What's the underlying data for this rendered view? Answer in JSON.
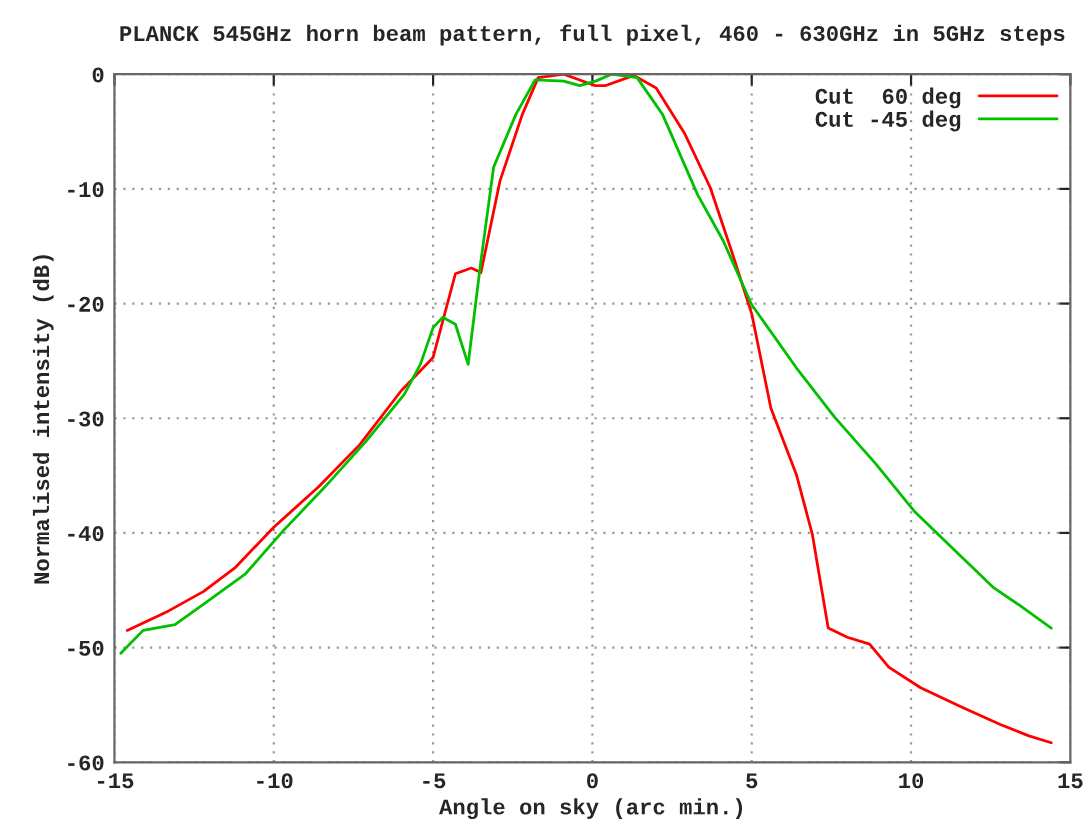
{
  "chart_data": {
    "type": "line",
    "title": "PLANCK 545GHz horn beam pattern, full pixel, 460 - 630GHz in 5GHz steps",
    "xlabel": "Angle on sky (arc min.)",
    "ylabel": "Normalised intensity (dB)",
    "xlim": [
      -15,
      15
    ],
    "ylim": [
      -60,
      0
    ],
    "xticks": [
      -15,
      -10,
      -5,
      0,
      5,
      10,
      15
    ],
    "yticks": [
      -60,
      -50,
      -40,
      -30,
      -20,
      -10,
      0
    ],
    "grid": true,
    "legend": "top right",
    "line_style": "solid",
    "marker": "none",
    "series": [
      {
        "name": "Cut  60 deg",
        "color": "#ff0000",
        "x": [
          -14.6,
          -13.3,
          -12.2,
          -11.2,
          -10,
          -8.6,
          -7.3,
          -6.0,
          -5.0,
          -4.3,
          -3.8,
          -3.5,
          -2.9,
          -2.2,
          -1.7,
          -0.9,
          0.1,
          0.4,
          1.3,
          2.0,
          2.9,
          3.7,
          4.4,
          5.0,
          5.6,
          6.4,
          6.9,
          7.4,
          8.0,
          8.7,
          9.3,
          10.3,
          11.6,
          12.8,
          13.7,
          14.4
        ],
        "values": [
          -48.5,
          -46.8,
          -45.1,
          -43.0,
          -39.5,
          -36.0,
          -32.3,
          -27.6,
          -24.7,
          -17.4,
          -16.9,
          -17.3,
          -9.3,
          -3.5,
          -0.3,
          0,
          -1.0,
          -1.0,
          -0.1,
          -1.2,
          -5.2,
          -9.9,
          -15.7,
          -20.9,
          -29.1,
          -34.9,
          -40.1,
          -48.3,
          -49.1,
          -49.7,
          -51.7,
          -53.5,
          -55.2,
          -56.7,
          -57.7,
          -58.3
        ]
      },
      {
        "name": "Cut -45 deg",
        "color": "#00c000",
        "x": [
          -14.8,
          -14.1,
          -13.1,
          -12.2,
          -10.9,
          -9.7,
          -8.4,
          -7.1,
          -5.9,
          -5.4,
          -5.0,
          -4.7,
          -4.3,
          -3.9,
          -3.5,
          -3.1,
          -2.4,
          -1.8,
          -0.9,
          -0.4,
          0.1,
          0.6,
          1.4,
          2.2,
          3.3,
          4.1,
          5.0,
          6.4,
          7.6,
          8.9,
          10.1,
          11.4,
          12.6,
          13.4,
          14.4
        ],
        "values": [
          -50.5,
          -48.5,
          -48.0,
          -46.2,
          -43.6,
          -39.8,
          -36.0,
          -32.0,
          -27.9,
          -25.3,
          -22.1,
          -21.2,
          -21.8,
          -25.3,
          -16.3,
          -8.1,
          -3.5,
          -0.5,
          -0.6,
          -1.0,
          -0.6,
          0,
          -0.3,
          -3.5,
          -10.5,
          -14.5,
          -20.1,
          -25.6,
          -29.9,
          -34.0,
          -38.1,
          -41.6,
          -44.8,
          -46.3,
          -48.3
        ]
      }
    ]
  }
}
